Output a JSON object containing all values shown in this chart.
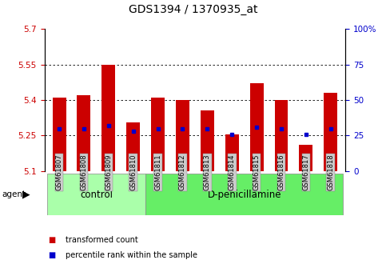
{
  "title": "GDS1394 / 1370935_at",
  "samples": [
    "GSM61807",
    "GSM61808",
    "GSM61809",
    "GSM61810",
    "GSM61811",
    "GSM61812",
    "GSM61813",
    "GSM61814",
    "GSM61815",
    "GSM61816",
    "GSM61817",
    "GSM61818"
  ],
  "transformed_count": [
    5.41,
    5.42,
    5.55,
    5.305,
    5.41,
    5.4,
    5.355,
    5.255,
    5.47,
    5.4,
    5.21,
    5.43
  ],
  "percentile_rank": [
    30,
    30,
    32,
    28,
    30,
    30,
    30,
    26,
    31,
    30,
    26,
    30
  ],
  "bar_bottom": 5.1,
  "ylim_left": [
    5.1,
    5.7
  ],
  "ylim_right": [
    0,
    100
  ],
  "yticks_left": [
    5.1,
    5.25,
    5.4,
    5.55,
    5.7
  ],
  "ytick_labels_left": [
    "5.1",
    "5.25",
    "5.4",
    "5.55",
    "5.7"
  ],
  "yticks_right": [
    0,
    25,
    50,
    75,
    100
  ],
  "ytick_labels_right": [
    "0",
    "25",
    "50",
    "75",
    "100%"
  ],
  "grid_yticks": [
    5.25,
    5.4,
    5.55
  ],
  "bar_color": "#cc0000",
  "dot_color": "#0000cc",
  "bar_width": 0.55,
  "groups": [
    {
      "label": "control",
      "start": 0,
      "end": 3
    },
    {
      "label": "D-penicillamine",
      "start": 4,
      "end": 11
    }
  ],
  "group_colors": [
    "#aaffaa",
    "#66ee66"
  ],
  "ticklabel_bg": "#cccccc",
  "agent_label": "agent",
  "legend_labels": [
    "transformed count",
    "percentile rank within the sample"
  ],
  "legend_colors": [
    "#cc0000",
    "#0000cc"
  ],
  "left_tick_color": "#cc0000",
  "right_tick_color": "#0000cc",
  "title_fontsize": 10,
  "tick_fontsize": 7.5,
  "sample_fontsize": 6,
  "group_fontsize": 8.5
}
